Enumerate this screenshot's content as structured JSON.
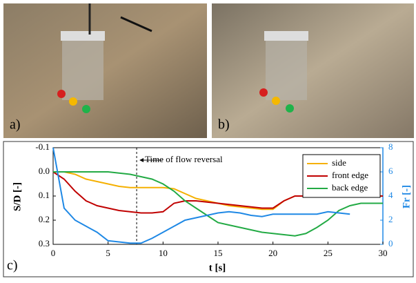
{
  "panels": {
    "a": "a)",
    "b": "b)"
  },
  "chart_data": {
    "type": "line",
    "panel_label": "c)",
    "xlabel": "t [s]",
    "ylabel": "S/D [-]",
    "y2label": "Fr [-]",
    "annotation": "Time of flow reversal",
    "annotation_x": 7.6,
    "x": [
      0,
      1,
      2,
      3,
      4,
      5,
      6,
      7,
      8,
      9,
      10,
      11,
      12,
      13,
      14,
      15,
      16,
      17,
      18,
      19,
      20,
      21,
      22,
      23,
      24,
      25,
      26,
      27,
      28,
      29,
      30
    ],
    "xlim": [
      0,
      30
    ],
    "xticks": [
      0,
      5,
      10,
      15,
      20,
      25,
      30
    ],
    "ylim": [
      -0.1,
      0.3
    ],
    "y_inverted": true,
    "yticks": [
      {
        "value": -0.1,
        "label": "-0.1"
      },
      {
        "value": 0,
        "label": "0.0"
      },
      {
        "value": 0.1,
        "label": "0.1"
      },
      {
        "value": 0.2,
        "label": "0.2"
      },
      {
        "value": 0.3,
        "label": "0.3"
      }
    ],
    "y2lim": [
      0,
      8
    ],
    "y2ticks": [
      0,
      2,
      4,
      6,
      8
    ],
    "y2_color": "#1e88e5",
    "legend": "upper right",
    "series": [
      {
        "name": "side",
        "color": "#f5b000",
        "values": [
          0,
          0,
          0.01,
          0.03,
          0.04,
          0.05,
          0.06,
          0.065,
          0.065,
          0.065,
          0.065,
          0.07,
          0.09,
          0.11,
          0.12,
          0.13,
          0.14,
          0.145,
          0.15,
          0.155,
          0.155,
          0.12,
          0.1,
          0.1,
          0.1,
          0.1,
          0.1,
          0.1,
          0.1,
          0.1,
          0.1
        ]
      },
      {
        "name": "front edge",
        "color": "#c00000",
        "values": [
          0,
          0.03,
          0.08,
          0.12,
          0.14,
          0.15,
          0.16,
          0.165,
          0.17,
          0.17,
          0.165,
          0.13,
          0.12,
          0.12,
          0.125,
          0.13,
          0.135,
          0.14,
          0.145,
          0.15,
          0.15,
          0.12,
          0.1,
          0.1,
          0.1,
          0.1,
          0.1,
          0.1,
          0.1,
          0.1,
          0.1
        ]
      },
      {
        "name": "back edge",
        "color": "#22aa44",
        "values": [
          0,
          0,
          0,
          0,
          0,
          0,
          0.005,
          0.01,
          0.02,
          0.03,
          0.05,
          0.08,
          0.12,
          0.15,
          0.18,
          0.21,
          0.22,
          0.23,
          0.24,
          0.25,
          0.255,
          0.26,
          0.265,
          0.255,
          0.23,
          0.2,
          0.16,
          0.14,
          0.13,
          0.13,
          0.13
        ]
      },
      {
        "color": "#1e88e5",
        "axis": "y2",
        "values": [
          8,
          3,
          2,
          1.5,
          1,
          0.3,
          0.2,
          0.1,
          0.1,
          0.5,
          1,
          1.5,
          2,
          2.2,
          2.4,
          2.6,
          2.7,
          2.6,
          2.4,
          2.3,
          2.5,
          2.5,
          2.5,
          2.5,
          2.5,
          2.7,
          2.6,
          2.5,
          null,
          null,
          null
        ]
      }
    ]
  }
}
